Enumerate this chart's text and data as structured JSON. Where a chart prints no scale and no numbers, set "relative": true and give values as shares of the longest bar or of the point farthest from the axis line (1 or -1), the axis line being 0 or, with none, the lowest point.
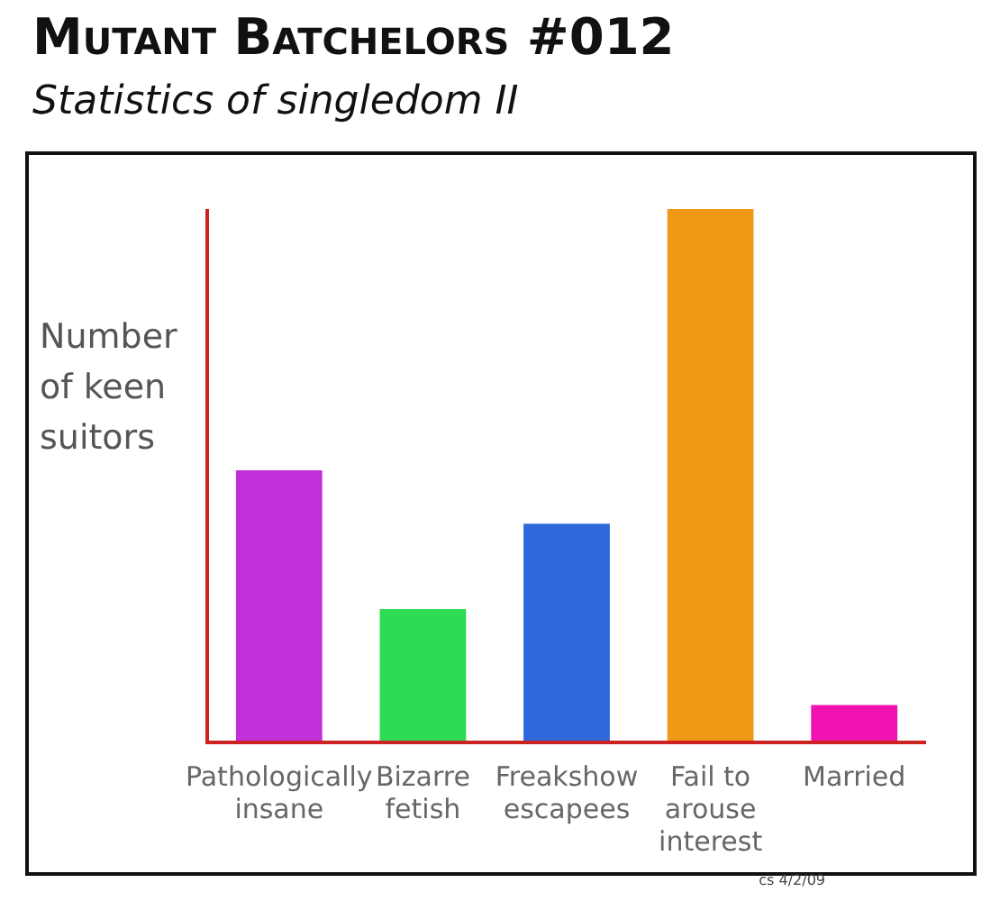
{
  "chart_data": {
    "type": "bar",
    "title": "Mutant Batchelors #012",
    "subtitle": "Statistics of singledom II",
    "ylabel": "Number of keen suitors",
    "categories": [
      "Pathologically insane",
      "Bizarre fetish",
      "Freakshow escapees",
      "Fail to arouse interest",
      "Married"
    ],
    "values": [
      0.51,
      0.25,
      0.41,
      1,
      0.07
    ],
    "colors": [
      "#c12fdb",
      "#2edb55",
      "#2e68db",
      "#ef9a16",
      "#f013b2"
    ],
    "relative": true,
    "grid": false,
    "legend": false,
    "annotations": [
      "cs 4/2/09"
    ]
  }
}
